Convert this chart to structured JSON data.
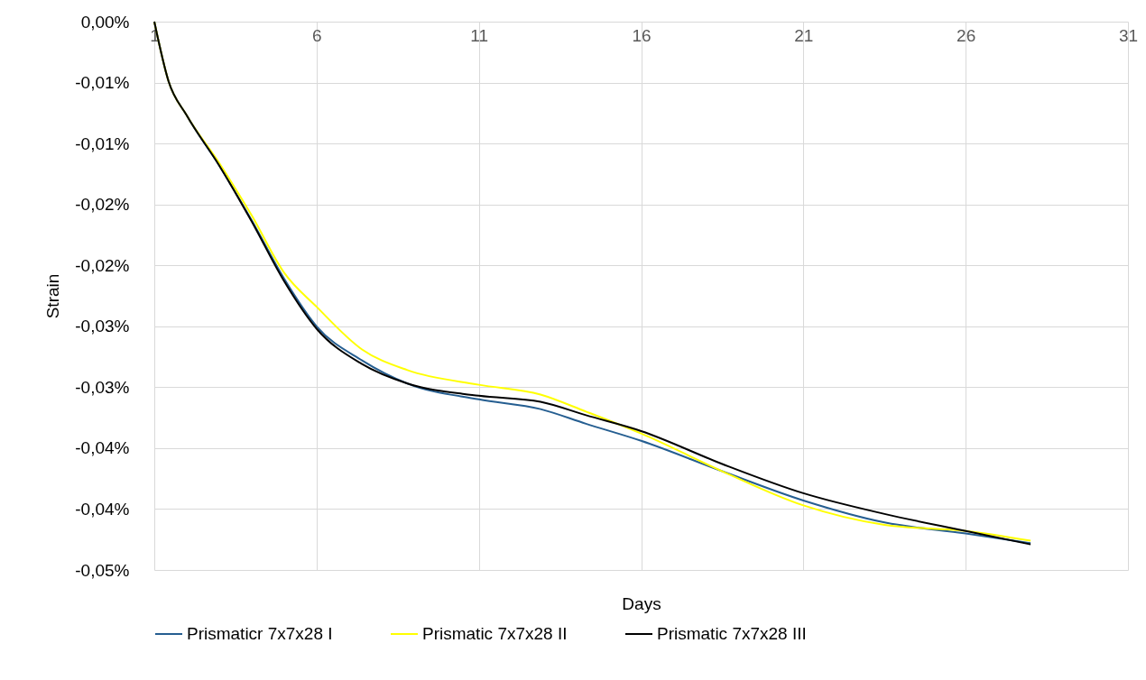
{
  "chart_data": {
    "type": "line",
    "xlabel": "Days",
    "ylabel": "Strain",
    "xlim": [
      1,
      31
    ],
    "xticks": [
      1,
      6,
      11,
      16,
      21,
      26,
      31
    ],
    "ylim": [
      -0.045,
      0
    ],
    "yticks": [
      {
        "value": 0,
        "label": "0,00%"
      },
      {
        "value": -0.005,
        "label": "-0,01%"
      },
      {
        "value": -0.01,
        "label": "-0,01%"
      },
      {
        "value": -0.015,
        "label": "-0,02%"
      },
      {
        "value": -0.02,
        "label": "-0,02%"
      },
      {
        "value": -0.025,
        "label": "-0,03%"
      },
      {
        "value": -0.03,
        "label": "-0,03%"
      },
      {
        "value": -0.035,
        "label": "-0,04%"
      },
      {
        "value": -0.04,
        "label": "-0,04%"
      },
      {
        "value": -0.045,
        "label": "-0,05%"
      }
    ],
    "x": [
      1,
      1.44,
      2,
      3,
      4,
      5,
      6,
      7.4,
      8.8,
      11,
      12.9,
      14.3,
      16,
      18.5,
      21,
      23.5,
      26,
      28
    ],
    "grid": true,
    "legend": "bottom",
    "marker": "none",
    "line_style": "solid",
    "series": [
      {
        "name": "Prismaticr 7x7x28 I",
        "color": "#255e91",
        "values": [
          0,
          -0.0049,
          -0.0077,
          -0.0118,
          -0.0163,
          -0.0211,
          -0.025,
          -0.0278,
          -0.0297,
          -0.031,
          -0.0318,
          -0.033,
          -0.0344,
          -0.0369,
          -0.0393,
          -0.0411,
          -0.042,
          -0.0428
        ]
      },
      {
        "name": "Prismatic 7x7x28 II",
        "color": "#ffff00",
        "values": [
          0,
          -0.0049,
          -0.0077,
          -0.0116,
          -0.0159,
          -0.0206,
          -0.0234,
          -0.0269,
          -0.0286,
          -0.0298,
          -0.0306,
          -0.032,
          -0.0338,
          -0.0369,
          -0.0397,
          -0.0413,
          -0.0418,
          -0.0426
        ]
      },
      {
        "name": "Prismatic 7x7x28 III",
        "color": "#000000",
        "values": [
          0,
          -0.0049,
          -0.0077,
          -0.0118,
          -0.0164,
          -0.0213,
          -0.0252,
          -0.0281,
          -0.0297,
          -0.0307,
          -0.0312,
          -0.0323,
          -0.0336,
          -0.0363,
          -0.0387,
          -0.0404,
          -0.0418,
          -0.0429
        ]
      }
    ]
  }
}
